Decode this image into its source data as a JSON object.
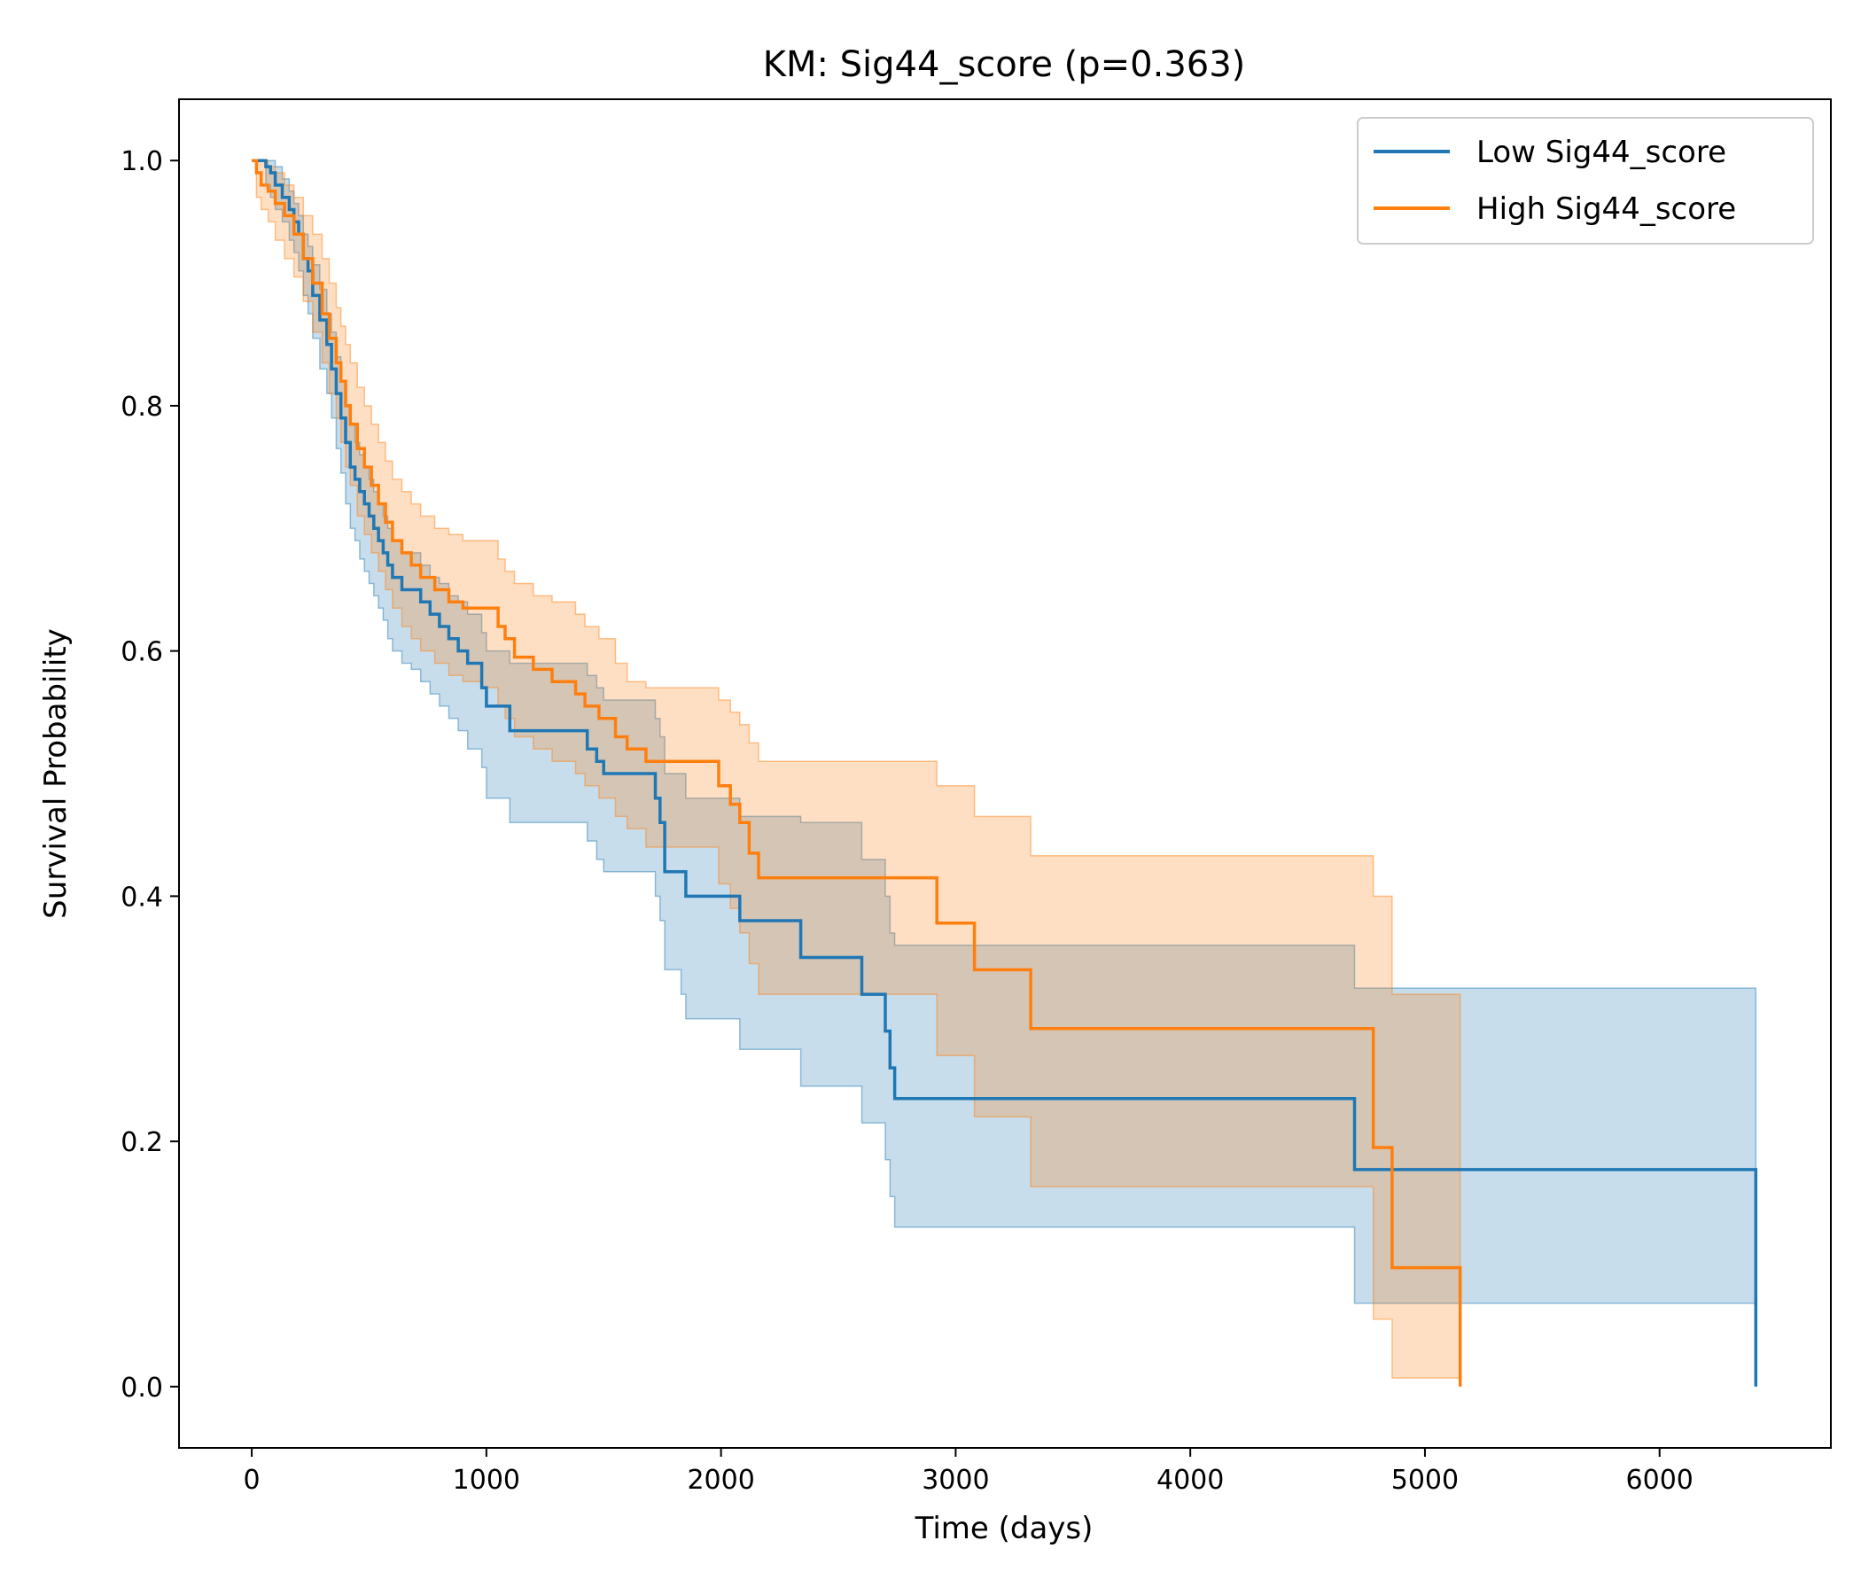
{
  "chart_data": {
    "type": "line",
    "subtype": "kaplan-meier-step",
    "title": "KM: Sig44_score (p=0.363)",
    "xlabel": "Time (days)",
    "ylabel": "Survival Probability",
    "xlim": [
      -310,
      6730
    ],
    "ylim": [
      -0.05,
      1.05
    ],
    "xticks": [
      0,
      1000,
      2000,
      3000,
      4000,
      5000,
      6000
    ],
    "xtick_labels": [
      "0",
      "1000",
      "2000",
      "3000",
      "4000",
      "5000",
      "6000"
    ],
    "yticks": [
      0.0,
      0.2,
      0.4,
      0.6,
      0.8,
      1.0
    ],
    "ytick_labels": [
      "0.0",
      "0.2",
      "0.4",
      "0.6",
      "0.8",
      "1.0"
    ],
    "grid": false,
    "legend_position": "top-right",
    "series": [
      {
        "name": "Low Sig44_score",
        "color": "#1f77b4",
        "band_color": "#1f77b4",
        "x": [
          0,
          60,
          80,
          100,
          130,
          160,
          180,
          200,
          220,
          240,
          260,
          290,
          320,
          340,
          360,
          380,
          400,
          420,
          440,
          460,
          480,
          500,
          520,
          540,
          560,
          580,
          600,
          640,
          680,
          720,
          760,
          800,
          840,
          880,
          920,
          980,
          1000,
          1100,
          1200,
          1300,
          1430,
          1470,
          1500,
          1720,
          1740,
          1760,
          1830,
          1850,
          2060,
          2080,
          2320,
          2340,
          2580,
          2600,
          2690,
          2700,
          2720,
          2740,
          4680,
          4700,
          6410,
          6410
        ],
        "y": [
          1.0,
          0.995,
          0.99,
          0.98,
          0.97,
          0.96,
          0.95,
          0.94,
          0.92,
          0.91,
          0.89,
          0.87,
          0.85,
          0.83,
          0.81,
          0.79,
          0.77,
          0.75,
          0.74,
          0.73,
          0.72,
          0.71,
          0.7,
          0.69,
          0.68,
          0.67,
          0.66,
          0.65,
          0.65,
          0.64,
          0.63,
          0.62,
          0.61,
          0.6,
          0.59,
          0.57,
          0.555,
          0.535,
          0.535,
          0.535,
          0.52,
          0.51,
          0.5,
          0.48,
          0.46,
          0.42,
          0.42,
          0.4,
          0.4,
          0.38,
          0.38,
          0.35,
          0.35,
          0.32,
          0.32,
          0.29,
          0.26,
          0.235,
          0.235,
          0.177,
          0.177,
          0.0
        ],
        "ci_upper": [
          1.0,
          1.0,
          1.0,
          0.995,
          0.985,
          0.975,
          0.965,
          0.955,
          0.94,
          0.93,
          0.915,
          0.895,
          0.875,
          0.86,
          0.84,
          0.82,
          0.8,
          0.785,
          0.77,
          0.76,
          0.75,
          0.74,
          0.73,
          0.72,
          0.71,
          0.7,
          0.69,
          0.68,
          0.68,
          0.67,
          0.66,
          0.655,
          0.645,
          0.64,
          0.63,
          0.615,
          0.6,
          0.59,
          0.59,
          0.59,
          0.58,
          0.57,
          0.56,
          0.545,
          0.53,
          0.5,
          0.5,
          0.48,
          0.48,
          0.465,
          0.465,
          0.46,
          0.46,
          0.43,
          0.43,
          0.4,
          0.37,
          0.36,
          0.36,
          0.325,
          0.325,
          0.325
        ],
        "ci_lower": [
          1.0,
          0.98,
          0.97,
          0.96,
          0.95,
          0.935,
          0.925,
          0.91,
          0.89,
          0.875,
          0.855,
          0.83,
          0.81,
          0.79,
          0.765,
          0.745,
          0.72,
          0.7,
          0.69,
          0.675,
          0.665,
          0.655,
          0.645,
          0.635,
          0.625,
          0.61,
          0.6,
          0.59,
          0.585,
          0.575,
          0.565,
          0.555,
          0.545,
          0.535,
          0.52,
          0.505,
          0.48,
          0.46,
          0.46,
          0.46,
          0.445,
          0.43,
          0.42,
          0.4,
          0.38,
          0.34,
          0.32,
          0.3,
          0.3,
          0.275,
          0.275,
          0.245,
          0.245,
          0.215,
          0.215,
          0.185,
          0.155,
          0.13,
          0.13,
          0.068,
          0.068,
          0.068
        ]
      },
      {
        "name": "High Sig44_score",
        "color": "#ff7f0e",
        "band_color": "#ff7f0e",
        "x": [
          0,
          20,
          40,
          70,
          100,
          140,
          180,
          220,
          260,
          300,
          330,
          360,
          380,
          400,
          420,
          450,
          480,
          510,
          540,
          570,
          600,
          640,
          680,
          720,
          780,
          840,
          900,
          980,
          1050,
          1080,
          1120,
          1200,
          1280,
          1380,
          1420,
          1480,
          1550,
          1600,
          1680,
          1960,
          1990,
          2040,
          2080,
          2120,
          2160,
          2900,
          2920,
          3060,
          3080,
          3300,
          3320,
          4760,
          4780,
          4840,
          4860,
          5150,
          5150
        ],
        "y": [
          1.0,
          0.99,
          0.98,
          0.975,
          0.965,
          0.955,
          0.94,
          0.92,
          0.9,
          0.875,
          0.855,
          0.835,
          0.82,
          0.8,
          0.785,
          0.765,
          0.75,
          0.735,
          0.72,
          0.705,
          0.69,
          0.68,
          0.67,
          0.66,
          0.65,
          0.64,
          0.635,
          0.635,
          0.62,
          0.61,
          0.595,
          0.585,
          0.575,
          0.565,
          0.555,
          0.545,
          0.53,
          0.52,
          0.51,
          0.51,
          0.49,
          0.475,
          0.46,
          0.435,
          0.415,
          0.415,
          0.378,
          0.378,
          0.34,
          0.34,
          0.292,
          0.292,
          0.195,
          0.195,
          0.097,
          0.097,
          0.0
        ],
        "ci_upper": [
          1.0,
          1.0,
          1.0,
          0.995,
          0.99,
          0.98,
          0.97,
          0.955,
          0.94,
          0.92,
          0.9,
          0.88,
          0.865,
          0.85,
          0.835,
          0.815,
          0.8,
          0.785,
          0.77,
          0.755,
          0.74,
          0.73,
          0.72,
          0.71,
          0.7,
          0.695,
          0.69,
          0.69,
          0.675,
          0.665,
          0.655,
          0.645,
          0.64,
          0.63,
          0.62,
          0.61,
          0.59,
          0.575,
          0.57,
          0.57,
          0.56,
          0.55,
          0.54,
          0.525,
          0.51,
          0.51,
          0.49,
          0.49,
          0.465,
          0.465,
          0.433,
          0.433,
          0.4,
          0.4,
          0.32,
          0.32,
          0.32
        ],
        "ci_lower": [
          1.0,
          0.97,
          0.96,
          0.95,
          0.935,
          0.92,
          0.905,
          0.885,
          0.86,
          0.835,
          0.81,
          0.79,
          0.77,
          0.75,
          0.735,
          0.71,
          0.695,
          0.68,
          0.665,
          0.65,
          0.635,
          0.62,
          0.61,
          0.6,
          0.59,
          0.58,
          0.575,
          0.57,
          0.555,
          0.545,
          0.53,
          0.52,
          0.51,
          0.5,
          0.49,
          0.48,
          0.465,
          0.455,
          0.44,
          0.44,
          0.41,
          0.39,
          0.37,
          0.345,
          0.32,
          0.32,
          0.27,
          0.27,
          0.22,
          0.22,
          0.163,
          0.163,
          0.055,
          0.055,
          0.007,
          0.007,
          0.007
        ]
      }
    ]
  }
}
